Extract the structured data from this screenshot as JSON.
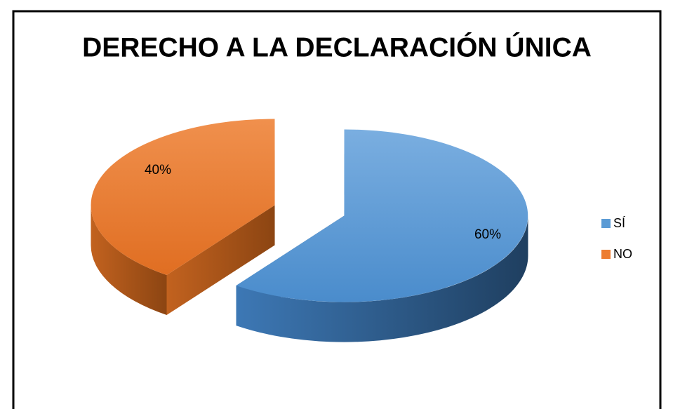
{
  "chart_data": {
    "type": "pie",
    "title": "DERECHO A LA DECLARACIÓN ÚNICA",
    "categories": [
      "SÍ",
      "NO"
    ],
    "values": [
      60,
      40
    ],
    "value_labels": [
      "60%",
      "40%"
    ],
    "colors": [
      "#5b9bd5",
      "#ed7d31"
    ],
    "legend": "right",
    "style": "3d-exploded"
  }
}
